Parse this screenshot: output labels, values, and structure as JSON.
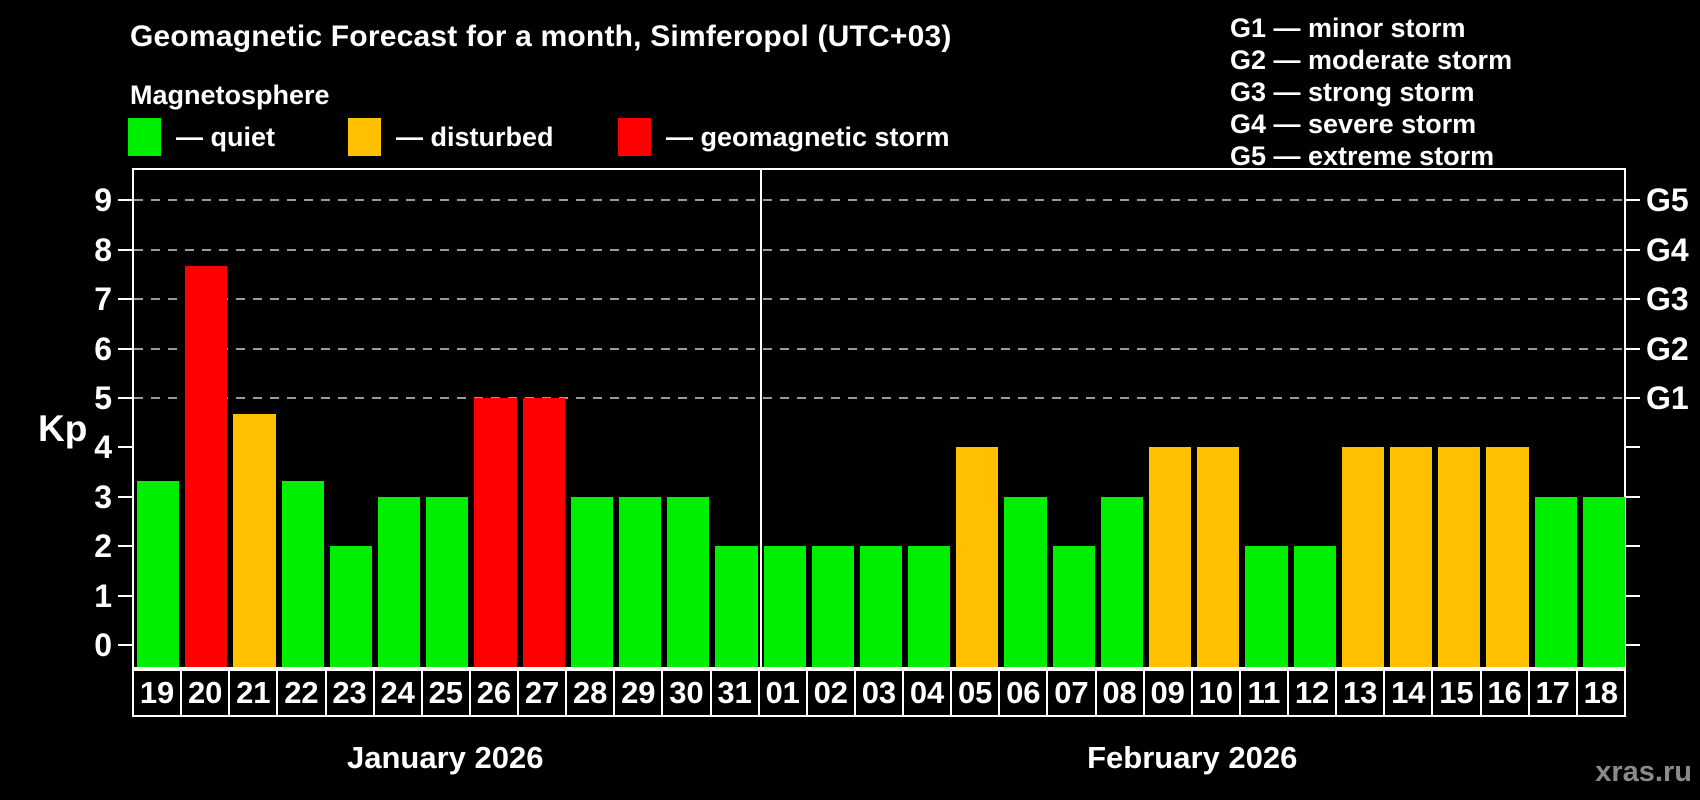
{
  "header": {
    "title": "Geomagnetic Forecast for a month, Simferopol (UTC+03)",
    "subtitle": "Magnetosphere"
  },
  "legend": {
    "items": [
      {
        "key": "quiet",
        "label": "— quiet",
        "x": 128
      },
      {
        "key": "disturbed",
        "label": "— disturbed",
        "x": 348
      },
      {
        "key": "storm",
        "label": "— geomagnetic storm",
        "x": 618
      }
    ]
  },
  "storm_scale_legend": {
    "items": [
      "G1 — minor storm",
      "G2 — moderate storm",
      "G3 — strong storm",
      "G4 — severe storm",
      "G5 — extreme storm"
    ]
  },
  "watermark": "xras.ru",
  "colors": {
    "background": "#000000",
    "text": "#ffffff",
    "axis": "#ffffff",
    "grid": "#9a9a9a",
    "watermark": "#8a8a8a",
    "quiet": "#00ee00",
    "disturbed": "#ffc000",
    "storm": "#ff0000"
  },
  "chart_data": {
    "type": "bar",
    "title": "Geomagnetic Forecast for a month, Simferopol (UTC+03)",
    "xlabel": "",
    "ylabel": "Kp",
    "ylim": [
      0,
      9.7
    ],
    "grid": "horizontal dashed lines at G-storm levels only",
    "legend_position": "top-left",
    "y_ticks": [
      0,
      1,
      2,
      3,
      4,
      5,
      6,
      7,
      8,
      9
    ],
    "gridlines_at": [
      5,
      6,
      7,
      8,
      9
    ],
    "right_axis_labels": [
      {
        "label": "G1",
        "kp": 5
      },
      {
        "label": "G2",
        "kp": 6
      },
      {
        "label": "G3",
        "kp": 7
      },
      {
        "label": "G4",
        "kp": 8
      },
      {
        "label": "G5",
        "kp": 9
      }
    ],
    "months": [
      {
        "label": "January 2026",
        "start_index": 0,
        "days": 13
      },
      {
        "label": "February 2026",
        "start_index": 13,
        "days": 18
      }
    ],
    "categories": [
      "19",
      "20",
      "21",
      "22",
      "23",
      "24",
      "25",
      "26",
      "27",
      "28",
      "29",
      "30",
      "31",
      "01",
      "02",
      "03",
      "04",
      "05",
      "06",
      "07",
      "08",
      "09",
      "10",
      "11",
      "12",
      "13",
      "14",
      "15",
      "16",
      "17",
      "18"
    ],
    "values": [
      3.33,
      7.67,
      4.67,
      3.33,
      2,
      3,
      3,
      5,
      5,
      3,
      3,
      3,
      2,
      2,
      2,
      2,
      2,
      4,
      3,
      2,
      3,
      4,
      4,
      2,
      2,
      4,
      4,
      4,
      4,
      3,
      3
    ],
    "statuses": [
      "quiet",
      "storm",
      "disturbed",
      "quiet",
      "quiet",
      "quiet",
      "quiet",
      "storm",
      "storm",
      "quiet",
      "quiet",
      "quiet",
      "quiet",
      "quiet",
      "quiet",
      "quiet",
      "quiet",
      "disturbed",
      "quiet",
      "quiet",
      "quiet",
      "disturbed",
      "disturbed",
      "quiet",
      "quiet",
      "disturbed",
      "disturbed",
      "disturbed",
      "disturbed",
      "quiet",
      "quiet"
    ]
  }
}
